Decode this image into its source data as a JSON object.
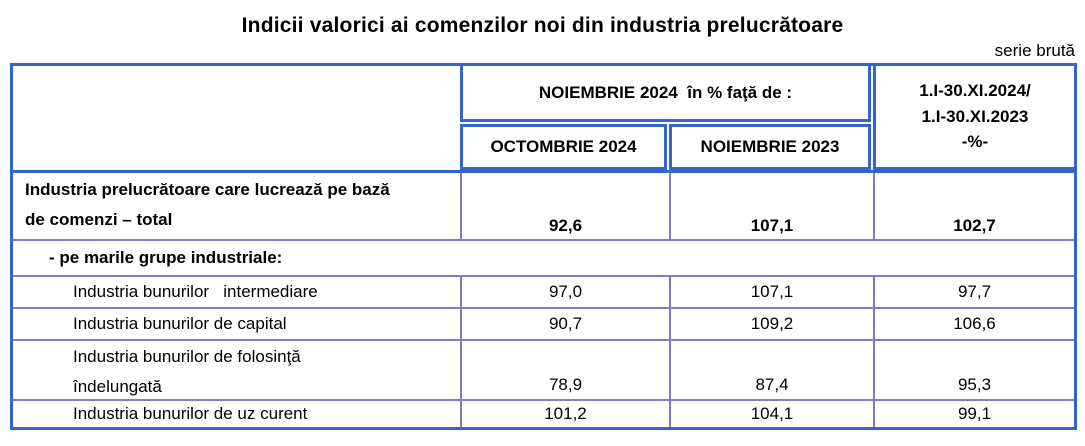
{
  "title": "Indicii valorici ai comenzilor noi din industria prelucrătoare",
  "series_note": "serie brută",
  "table": {
    "header": {
      "group": "NOIEMBRIE 2024  în % faţă de :",
      "col_oct": "OCTOMBRIE 2024",
      "col_noi": "NOIEMBRIE 2023",
      "col_cum": "1.I-30.XI.2024/\n1.I-30.XI.2023\n-%-"
    },
    "rows": [
      {
        "label": "Industria prelucrătoare care lucrează pe bază\nde comenzi – total",
        "oct": "92,6",
        "noi": "107,1",
        "cum": "102,7"
      },
      {
        "label": "- pe marile grupe industriale:"
      },
      {
        "label": "Industria bunurilor   intermediare",
        "oct": "97,0",
        "noi": "107,1",
        "cum": "97,7"
      },
      {
        "label": "Industria bunurilor de capital",
        "oct": "90,7",
        "noi": "109,2",
        "cum": "106,6"
      },
      {
        "label": "Industria bunurilor de folosinţă\nîndelungată",
        "oct": "78,9",
        "noi": "87,4",
        "cum": "95,3"
      },
      {
        "label": "Industria bunurilor de uz curent",
        "oct": "101,2",
        "noi": "104,1",
        "cum": "99,1"
      }
    ]
  },
  "colors": {
    "header_border": "#3366CC",
    "grid_border": "#7D7DC6",
    "text": "#000000",
    "background": "#FFFFFF"
  }
}
